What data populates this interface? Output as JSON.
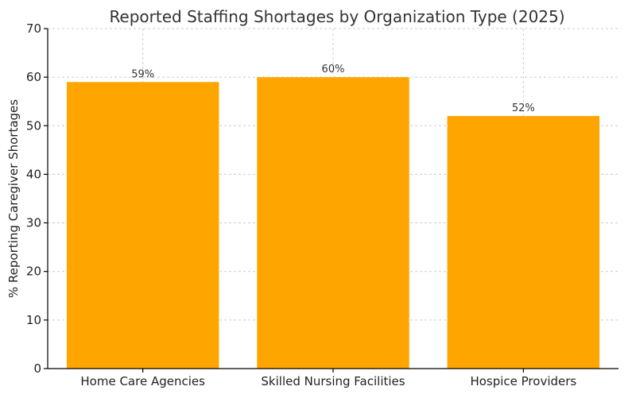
{
  "chart_data": {
    "type": "bar",
    "title": "Reported Staffing Shortages by Organization Type (2025)",
    "xlabel": "",
    "ylabel": "% Reporting Caregiver Shortages",
    "categories": [
      "Home Care Agencies",
      "Skilled Nursing Facilities",
      "Hospice Providers"
    ],
    "values": [
      59,
      60,
      52
    ],
    "value_labels": [
      "59%",
      "60%",
      "52%"
    ],
    "ylim": [
      0,
      70
    ],
    "yticks": [
      0,
      10,
      20,
      30,
      40,
      50,
      60,
      70
    ],
    "grid": true,
    "bar_color": "#ffa500"
  }
}
